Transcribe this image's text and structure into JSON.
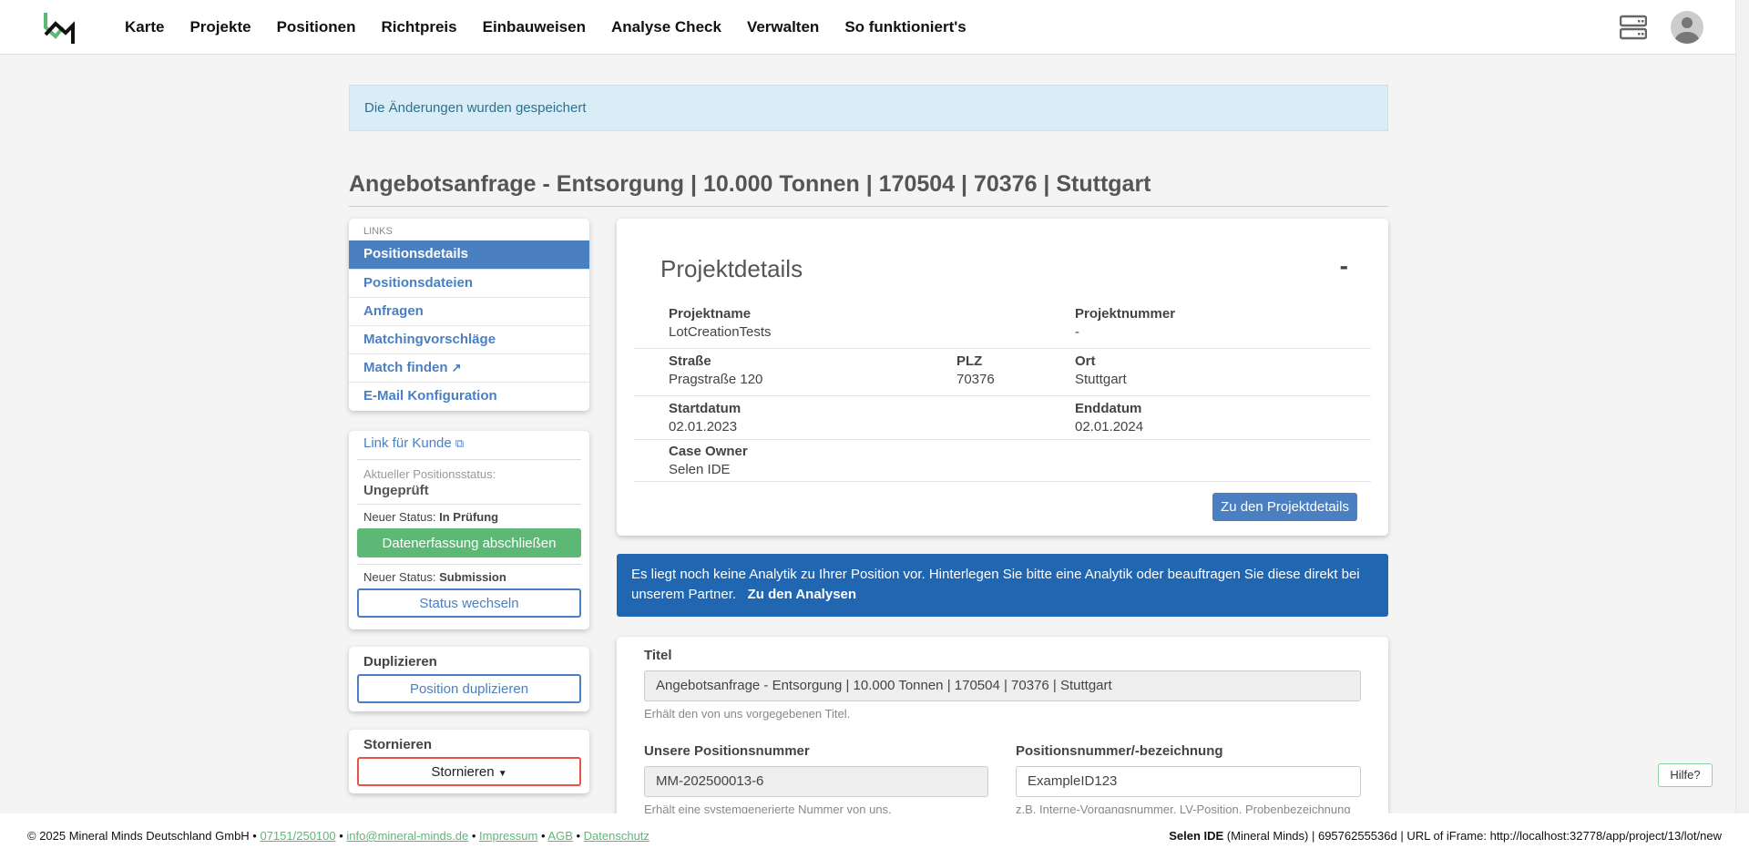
{
  "nav": {
    "items": [
      "Karte",
      "Projekte",
      "Positionen",
      "Richtpreis",
      "Einbauweisen",
      "Analyse Check",
      "Verwalten",
      "So funktioniert's"
    ]
  },
  "alert": "Die Änderungen wurden gespeichert",
  "page_title": "Angebotsanfrage - Entsorgung | 10.000 Tonnen | 170504 | 70376 | Stuttgart",
  "links": {
    "header": "LINKS",
    "items": [
      "Positionsdetails",
      "Positionsdateien",
      "Anfragen",
      "Matchingvorschläge",
      "Match finden",
      "E-Mail Konfiguration"
    ],
    "active": 0
  },
  "status": {
    "customer_link": "Link für Kunde",
    "current_label": "Aktueller Positionsstatus:",
    "current_value": "Ungeprüft",
    "new_label": "Neuer Status:",
    "new1": "In Prüfung",
    "btn1": "Datenerfassung abschließen",
    "new2": "Submission",
    "btn2": "Status wechseln"
  },
  "duplicate": {
    "title": "Duplizieren",
    "button": "Position duplizieren"
  },
  "cancel": {
    "title": "Stornieren",
    "button": "Stornieren"
  },
  "project": {
    "title": "Projektdetails",
    "collapse": "-",
    "fields": {
      "name_label": "Projektname",
      "name": "LotCreationTests",
      "number_label": "Projektnummer",
      "number": "-",
      "street_label": "Straße",
      "street": "Pragstraße 120",
      "zip_label": "PLZ",
      "zip": "70376",
      "city_label": "Ort",
      "city": "Stuttgart",
      "start_label": "Startdatum",
      "start": "02.01.2023",
      "end_label": "Enddatum",
      "end": "02.01.2024",
      "owner_label": "Case Owner",
      "owner": "Selen IDE"
    },
    "button": "Zu den Projektdetails"
  },
  "analytics": {
    "text": "Es liegt noch keine Analytik zu Ihrer Position vor. Hinterlegen Sie bitte eine Analytik oder beauftragen Sie diese direkt bei unserem Partner.",
    "link": "Zu den Analysen"
  },
  "form": {
    "title_label": "Titel",
    "title_value": "Angebotsanfrage - Entsorgung | 10.000 Tonnen | 170504 | 70376 | Stuttgart",
    "title_hint": "Erhält den von uns vorgegebenen Titel.",
    "ourno_label": "Unsere Positionsnummer",
    "ourno_value": "MM-202500013-6",
    "ourno_hint": "Erhält eine systemgenerierte Nummer von uns.",
    "posno_label": "Positionsnummer/-bezeichnung",
    "posno_value": "ExampleID123",
    "posno_hint": "z.B. Interne-Vorgangsnummer, LV-Position, Probenbezeichnung"
  },
  "help": "Hilfe?",
  "footer": {
    "copyright": "© 2025 Mineral Minds Deutschland GmbH",
    "phone": "07151/250100",
    "email": "info@mineral-minds.de",
    "impressum": "Impressum",
    "agb": "AGB",
    "datenschutz": "Datenschutz",
    "user": "Selen IDE",
    "user_rest": "(Mineral Minds) | 69576255536d | URL of iFrame: http://localhost:32778/app/project/13/lot/new"
  },
  "colors": {
    "primary": "#4a7fc1",
    "success": "#5cb874",
    "danger": "#e5534b",
    "info_bg": "#2166b0"
  }
}
